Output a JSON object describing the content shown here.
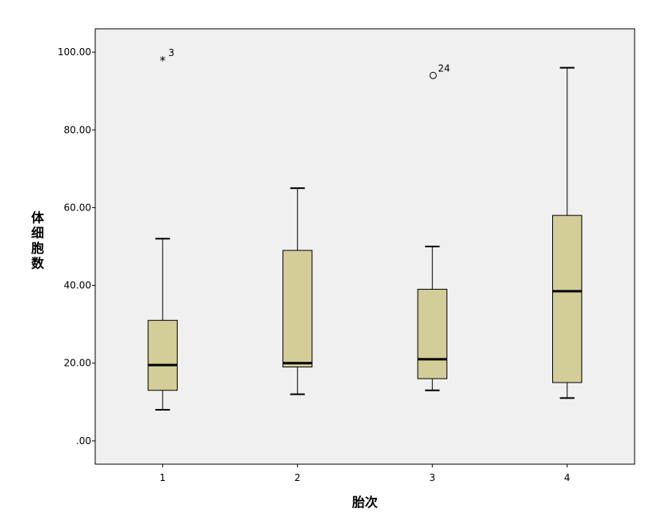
{
  "chart_data": {
    "type": "boxplot",
    "title": "",
    "xlabel": "胎次",
    "ylabel": "体细胞数",
    "categories": [
      "1",
      "2",
      "3",
      "4"
    ],
    "ylim": [
      -6,
      106
    ],
    "yticks": [
      0,
      20,
      40,
      60,
      80,
      100
    ],
    "ytick_labels": [
      ".00",
      "20.00",
      "40.00",
      "60.00",
      "80.00",
      "100.00"
    ],
    "grid": false,
    "legend": "none",
    "colors": {
      "plot_background": "#f0f0f0",
      "box_fill": "#d3ce97",
      "box_stroke": "#000000"
    },
    "boxes": [
      {
        "category": "1",
        "whisker_low": 8,
        "q1": 13,
        "median": 19.5,
        "q3": 31,
        "whisker_high": 52,
        "outliers": [
          {
            "value": 98,
            "label": "3",
            "marker": "star"
          }
        ]
      },
      {
        "category": "2",
        "whisker_low": 12,
        "q1": 19,
        "median": 20,
        "q3": 49,
        "whisker_high": 65,
        "outliers": []
      },
      {
        "category": "3",
        "whisker_low": 13,
        "q1": 16,
        "median": 21,
        "q3": 39,
        "whisker_high": 50,
        "outliers": [
          {
            "value": 94,
            "label": "24",
            "marker": "circle"
          }
        ]
      },
      {
        "category": "4",
        "whisker_low": 11,
        "q1": 15,
        "median": 38.5,
        "q3": 58,
        "whisker_high": 96,
        "outliers": []
      }
    ]
  }
}
